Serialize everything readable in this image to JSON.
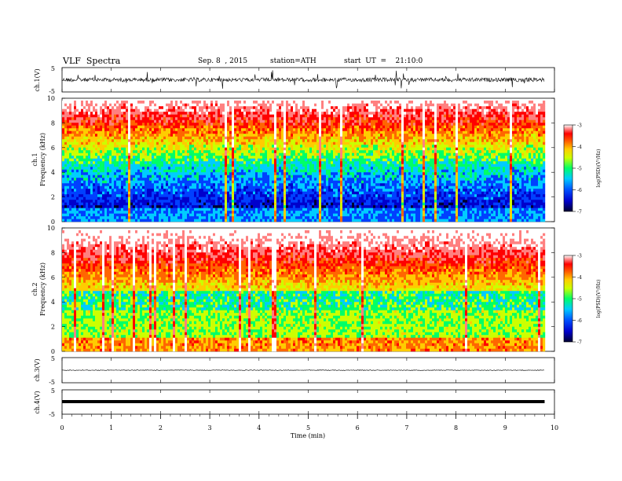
{
  "header": {
    "title": "VLF  Spectra",
    "date": "Sep. 8  , 2015",
    "station": "station=ATH",
    "start": "start  UT  =    21:10:0"
  },
  "chart_data": [
    {
      "type": "line",
      "panel": "ch1-waveform",
      "ylabel": "ch.1(V)",
      "ylim": [
        -5,
        5
      ],
      "y_ticks": [
        "5",
        "-5"
      ]
    },
    {
      "type": "heatmap",
      "panel": "ch1-spectrogram",
      "ylabel": "ch.1\nFrequency (kHz)",
      "ylabel_line1": "ch.1",
      "ylabel_line2": "Frequency (kHz)",
      "ylim": [
        0,
        10
      ],
      "y_ticks": [
        "0",
        "2",
        "4",
        "6",
        "8",
        "10"
      ],
      "colorbar": {
        "label": "log(PSD)(V²/Hz)",
        "range": [
          -7,
          -3
        ],
        "ticks": [
          "-3",
          "-4",
          "-5",
          "-6",
          "-7"
        ]
      }
    },
    {
      "type": "heatmap",
      "panel": "ch2-spectrogram",
      "ylabel_line1": "ch.2",
      "ylabel_line2": "Frequency (kHz)",
      "ylim": [
        0,
        10
      ],
      "y_ticks": [
        "0",
        "2",
        "4",
        "6",
        "8",
        "10"
      ],
      "colorbar": {
        "label": "log(PSD)(V²/Hz)",
        "range": [
          -7,
          -3
        ],
        "ticks": [
          "-3",
          "-4",
          "-5",
          "-6",
          "-7"
        ]
      }
    },
    {
      "type": "line",
      "panel": "ch3-waveform",
      "ylabel": "ch.3(V)",
      "ylim": [
        -5,
        5
      ],
      "y_ticks": [
        "5",
        "-5"
      ]
    },
    {
      "type": "line",
      "panel": "ch4-waveform",
      "ylabel": "ch.4(V)",
      "ylim": [
        -5,
        5
      ],
      "y_ticks": [
        "5",
        "-5"
      ]
    }
  ],
  "x_axis": {
    "label": "Time  (min)",
    "xlim": [
      0,
      10
    ],
    "ticks": [
      "0",
      "1",
      "2",
      "3",
      "4",
      "5",
      "6",
      "7",
      "8",
      "9",
      "10"
    ],
    "data_end": 9.8
  },
  "colors": {
    "scale": [
      "#000030",
      "#0000cc",
      "#0040ff",
      "#00ccff",
      "#00ff66",
      "#ccff00",
      "#ffcc00",
      "#ff6600",
      "#ff0000",
      "#ff8080",
      "#ffffff"
    ]
  }
}
